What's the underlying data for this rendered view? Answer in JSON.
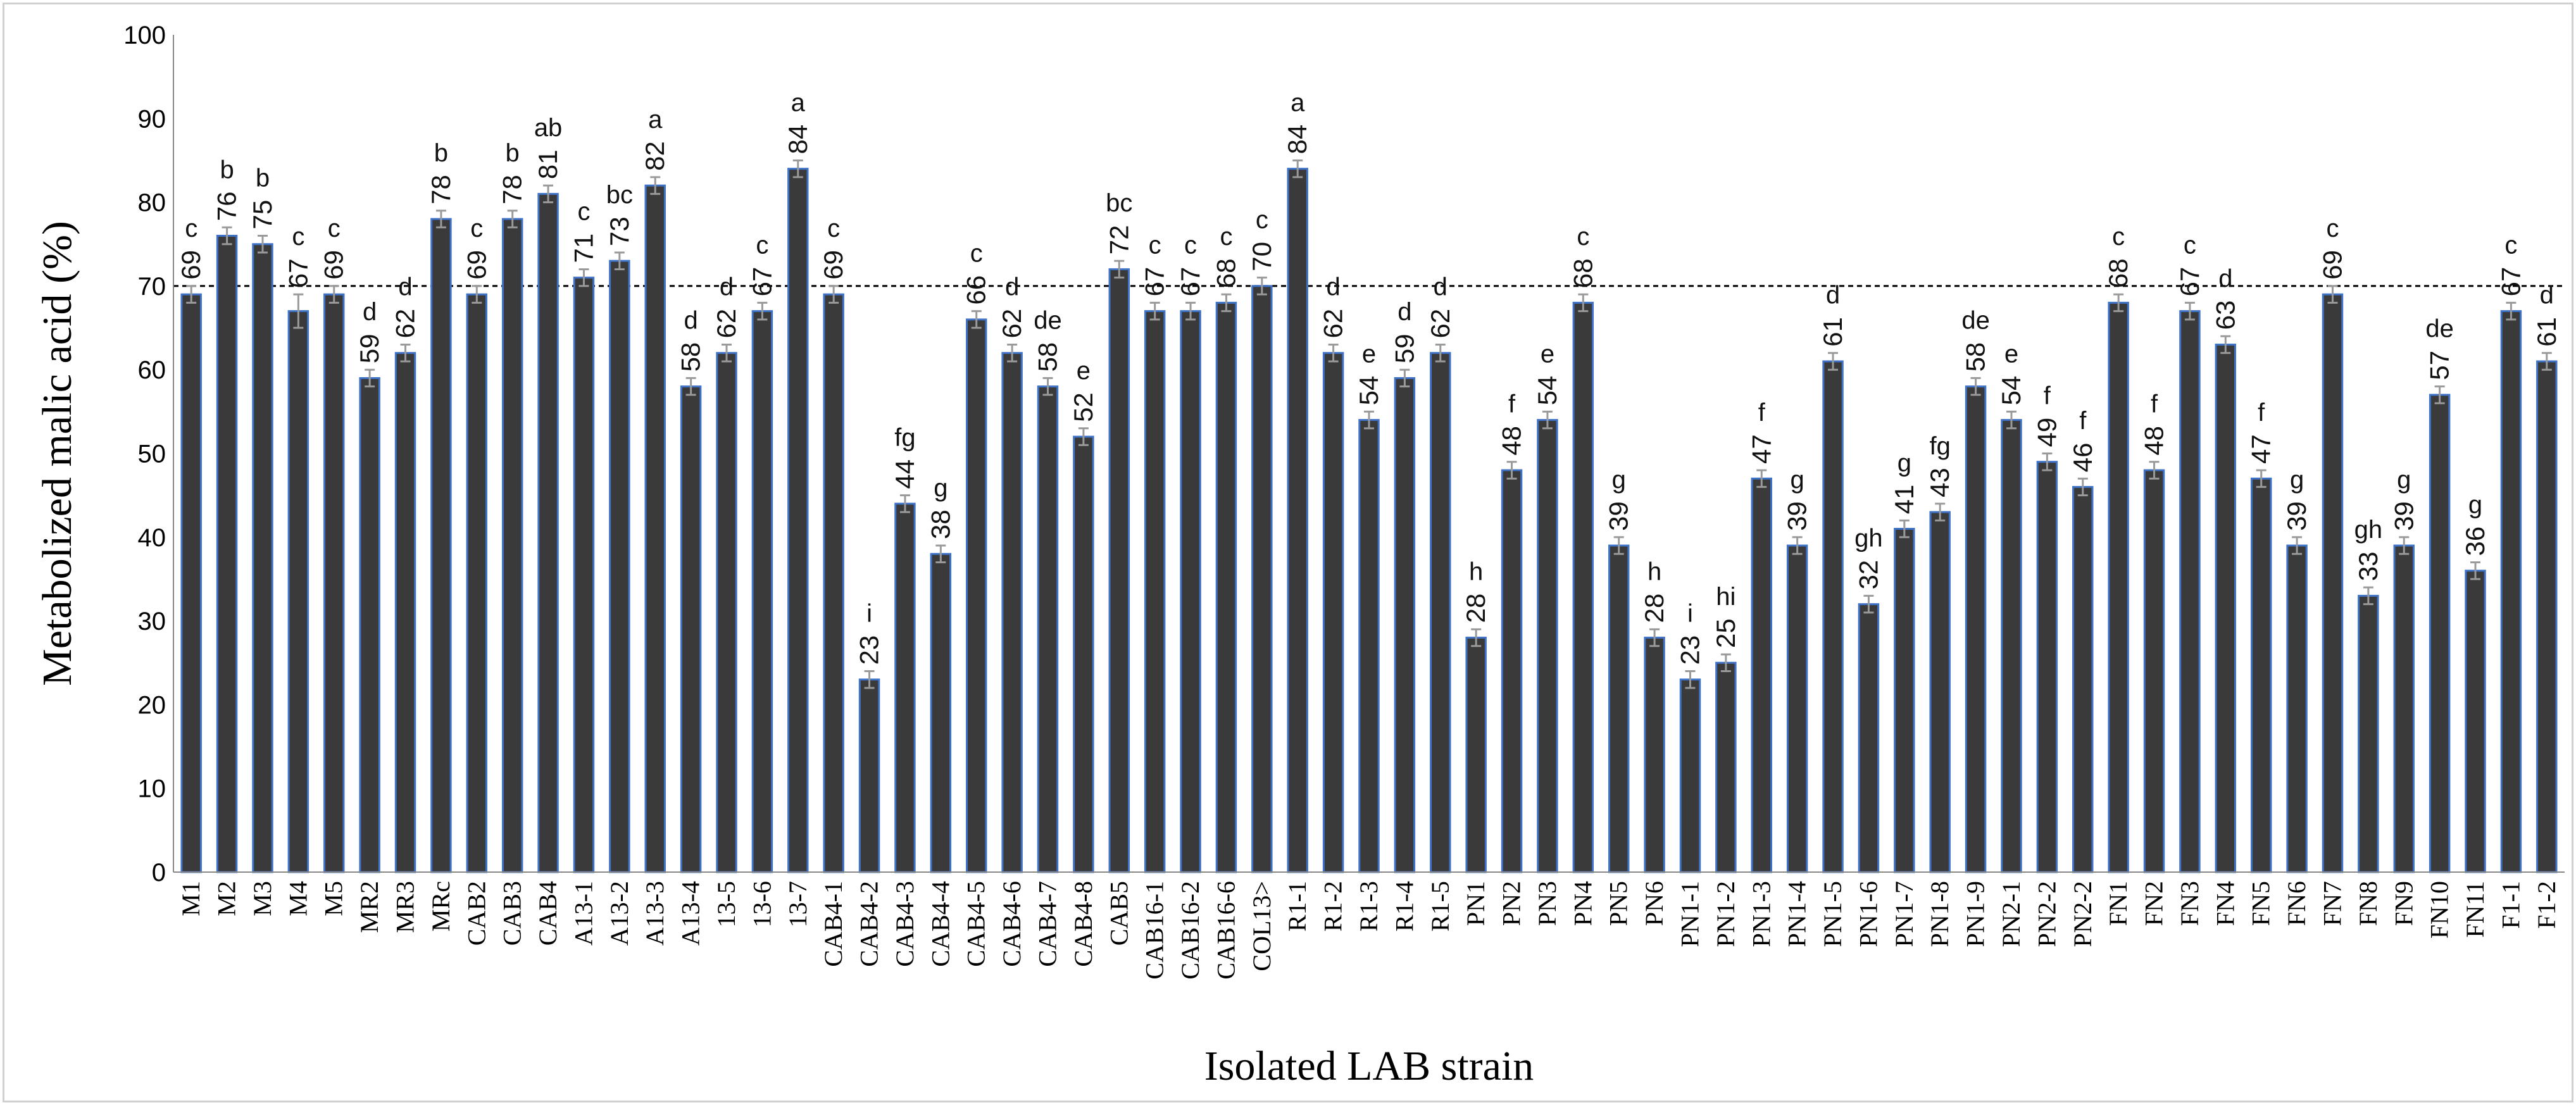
{
  "chart_data": {
    "type": "bar",
    "title": "",
    "xlabel": "Isolated LAB strain",
    "ylabel": "Metabolized malic acid (%)",
    "ylim": [
      0,
      100
    ],
    "yticks": [
      "0",
      "10",
      "20",
      "30",
      "40",
      "50",
      "60",
      "70",
      "80",
      "90",
      "100"
    ],
    "reference_line": 70,
    "grid": false,
    "colors": {
      "bar": "#3a3a3a",
      "bar_edge": "#3f73c8",
      "error_bar": "#9a9a9a",
      "ref_line": "#000000"
    },
    "categories": [
      "M1",
      "M2",
      "M3",
      "M4",
      "M5",
      "MR2",
      "MR3",
      "MRc",
      "CAB2",
      "CAB3",
      "CAB4",
      "A13-1",
      "A13-2",
      "A13-3",
      "A13-4",
      "13-5",
      "13-6",
      "13-7",
      "CAB4-1",
      "CAB4-2",
      "CAB4-3",
      "CAB4-4",
      "CAB4-5",
      "CAB4-6",
      "CAB4-7",
      "CAB4-8",
      "CAB5",
      "CAB16-1",
      "CAB16-2",
      "CAB16-6",
      "COL13>",
      "R1-1",
      "R1-2",
      "R1-3",
      "R1-4",
      "R1-5",
      "PN1",
      "PN2",
      "PN3",
      "PN4",
      "PN5",
      "PN6",
      "PN1-1",
      "PN1-2",
      "PN1-3",
      "PN1-4",
      "PN1-5",
      "PN1-6",
      "PN1-7",
      "PN1-8",
      "PN1-9",
      "PN2-1",
      "PN2-2",
      "PN2-2",
      "FN1",
      "FN2",
      "FN3",
      "FN4",
      "FN5",
      "FN6",
      "FN7",
      "FN8",
      "FN9",
      "FN10",
      "FN11",
      "F1-1",
      "F1-2"
    ],
    "values": [
      69,
      76,
      75,
      67,
      69,
      59,
      62,
      78,
      69,
      78,
      81,
      71,
      73,
      82,
      58,
      62,
      67,
      84,
      69,
      23,
      44,
      38,
      66,
      62,
      58,
      52,
      72,
      67,
      67,
      68,
      70,
      84,
      62,
      54,
      59,
      62,
      28,
      48,
      54,
      68,
      39,
      28,
      23,
      25,
      47,
      39,
      61,
      32,
      41,
      43,
      58,
      54,
      49,
      46,
      68,
      48,
      67,
      63,
      47,
      39,
      69,
      33,
      39,
      57,
      36,
      67,
      61
    ],
    "value_labels": [
      "69",
      "76",
      "75",
      "67",
      "69",
      "59",
      "62",
      "78",
      "69",
      "78",
      "81",
      "71",
      "73",
      "82",
      "58",
      "62",
      "67",
      "84",
      "69",
      "23",
      "44",
      "38",
      "66",
      "62",
      "58",
      "52",
      "72",
      "67",
      "67",
      "68",
      "70",
      "84",
      "62",
      "54",
      "59",
      "62",
      "28",
      "48",
      "54",
      "68",
      "39",
      "28",
      "23",
      "25",
      "47",
      "39",
      "61",
      "32",
      "41",
      "43",
      "58",
      "54",
      "49",
      "46",
      "68",
      "48",
      "67",
      "63",
      "47",
      "39",
      "69",
      "33",
      "39",
      "57",
      "36",
      "67",
      "61"
    ],
    "errors": [
      1,
      1,
      1,
      2,
      1,
      1,
      1,
      1,
      1,
      1,
      1,
      1,
      1,
      1,
      1,
      1,
      1,
      1,
      1,
      1,
      1,
      1,
      1,
      1,
      1,
      1,
      1,
      1,
      1,
      1,
      1,
      1,
      1,
      1,
      1,
      1,
      1,
      1,
      1,
      1,
      1,
      1,
      1,
      1,
      1,
      1,
      1,
      1,
      1,
      1,
      1,
      1,
      1,
      1,
      1,
      1,
      1,
      1,
      1,
      1,
      1,
      1,
      1,
      1,
      1,
      1,
      1
    ],
    "letters": [
      "c",
      "b",
      "b",
      "c",
      "c",
      "d",
      "d",
      "b",
      "c",
      "b",
      "ab",
      "c",
      "bc",
      "a",
      "d",
      "d",
      "c",
      "a",
      "c",
      "i",
      "fg",
      "g",
      "c",
      "d",
      "de",
      "e",
      "bc",
      "c",
      "c",
      "c",
      "c",
      "a",
      "d",
      "e",
      "d",
      "d",
      "h",
      "f",
      "e",
      "c",
      "g",
      "h",
      "i",
      "hi",
      "f",
      "g",
      "d",
      "gh",
      "g",
      "fg",
      "de",
      "e",
      "f",
      "f",
      "c",
      "f",
      "c",
      "d",
      "f",
      "g",
      "c",
      "gh",
      "g",
      "de",
      "g",
      "c",
      "d"
    ]
  }
}
